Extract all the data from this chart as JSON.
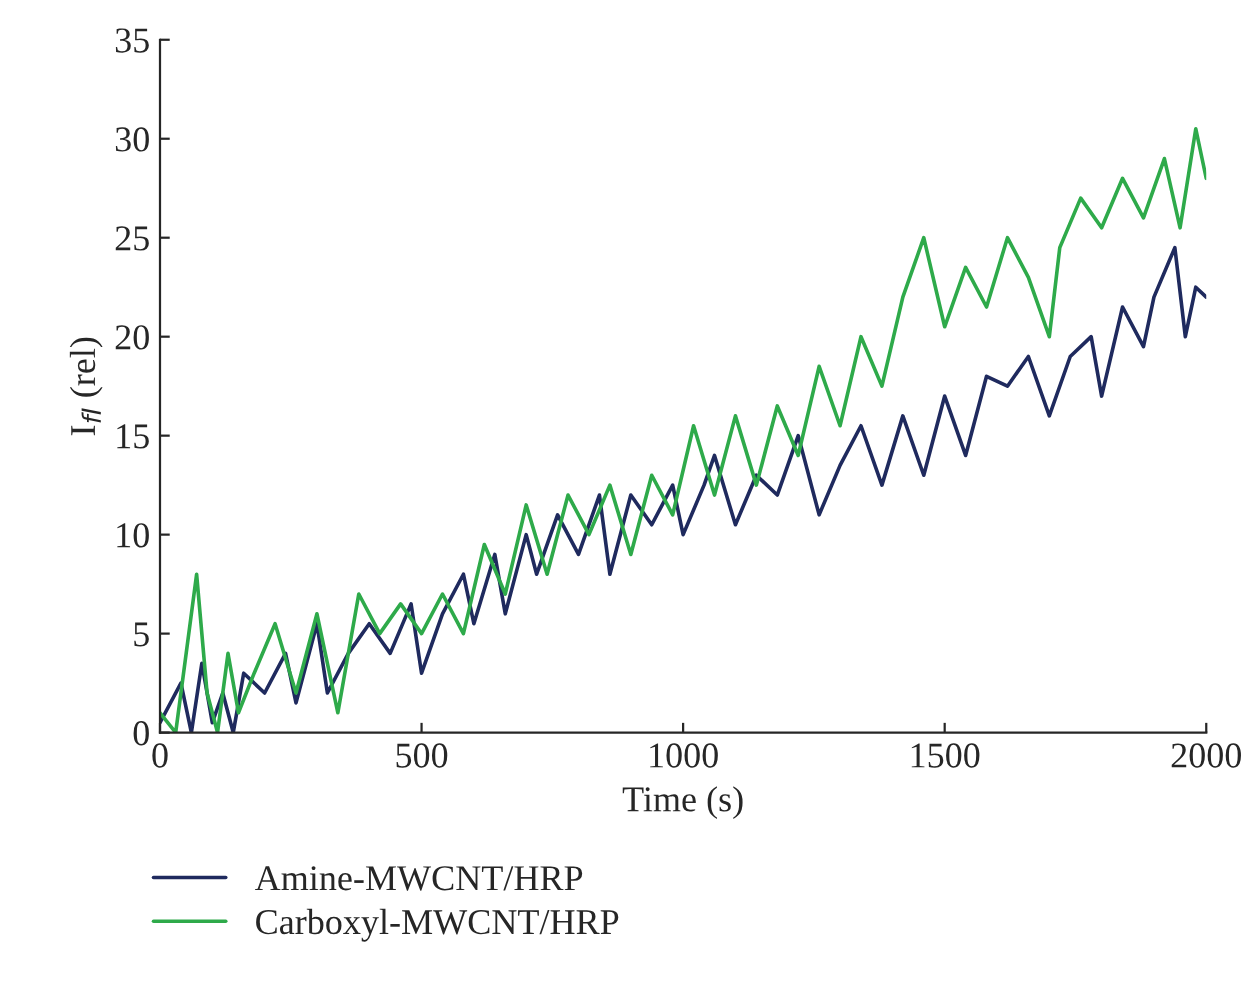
{
  "chart_data": {
    "type": "line",
    "xlabel": "Time (s)",
    "ylabel": "I$_{fl}$ (rel)",
    "xlim": [
      0,
      2000
    ],
    "xticks": [
      0,
      500,
      1000,
      1500,
      2000
    ],
    "ylim": [
      0,
      35
    ],
    "yticks": [
      0,
      5,
      10,
      15,
      20,
      25,
      30,
      35
    ],
    "grid": false,
    "legend": "bottom",
    "marker": "none",
    "line_style": "solid",
    "series": [
      {
        "name": "Amine-MWCNT/HRP",
        "color": "#1f2a5e",
        "x": [
          0,
          40,
          60,
          80,
          100,
          120,
          140,
          160,
          200,
          240,
          260,
          300,
          320,
          360,
          400,
          440,
          480,
          500,
          540,
          580,
          600,
          640,
          660,
          700,
          720,
          760,
          800,
          840,
          860,
          900,
          940,
          980,
          1000,
          1040,
          1060,
          1100,
          1140,
          1180,
          1220,
          1260,
          1300,
          1340,
          1380,
          1420,
          1460,
          1500,
          1540,
          1580,
          1620,
          1660,
          1700,
          1740,
          1780,
          1800,
          1840,
          1880,
          1900,
          1940,
          1960,
          1980,
          2000
        ],
        "values": [
          0.5,
          2.5,
          0,
          3.5,
          0.5,
          2,
          0,
          3,
          2,
          4,
          1.5,
          5.5,
          2,
          4,
          5.5,
          4,
          6.5,
          3,
          6,
          8,
          5.5,
          9,
          6,
          10,
          8,
          11,
          9,
          12,
          8,
          12,
          10.5,
          12.5,
          10,
          12.5,
          14,
          10.5,
          13,
          12,
          15,
          11,
          13.5,
          15.5,
          12.5,
          16,
          13,
          17,
          14,
          18,
          17.5,
          19,
          16,
          19,
          20,
          17,
          21.5,
          19.5,
          22,
          24.5,
          20,
          22.5,
          22
        ]
      },
      {
        "name": "Carboxyl-MWCNT/HRP",
        "color": "#2eaa4a",
        "x": [
          0,
          30,
          50,
          70,
          90,
          110,
          130,
          150,
          180,
          220,
          260,
          300,
          340,
          380,
          420,
          460,
          500,
          540,
          580,
          620,
          660,
          700,
          740,
          780,
          820,
          860,
          900,
          940,
          980,
          1020,
          1060,
          1100,
          1140,
          1180,
          1220,
          1260,
          1300,
          1340,
          1380,
          1420,
          1460,
          1500,
          1540,
          1580,
          1620,
          1660,
          1700,
          1720,
          1760,
          1800,
          1840,
          1880,
          1920,
          1950,
          1980,
          2000
        ],
        "values": [
          1,
          0,
          4,
          8,
          2,
          0,
          4,
          1,
          3,
          5.5,
          2,
          6,
          1,
          7,
          5,
          6.5,
          5,
          7,
          5,
          9.5,
          7,
          11.5,
          8,
          12,
          10,
          12.5,
          9,
          13,
          11,
          15.5,
          12,
          16,
          12.5,
          16.5,
          14,
          18.5,
          15.5,
          20,
          17.5,
          22,
          25,
          20.5,
          23.5,
          21.5,
          25,
          23,
          20,
          24.5,
          27,
          25.5,
          28,
          26,
          29,
          25.5,
          30.5,
          28
        ]
      }
    ]
  }
}
